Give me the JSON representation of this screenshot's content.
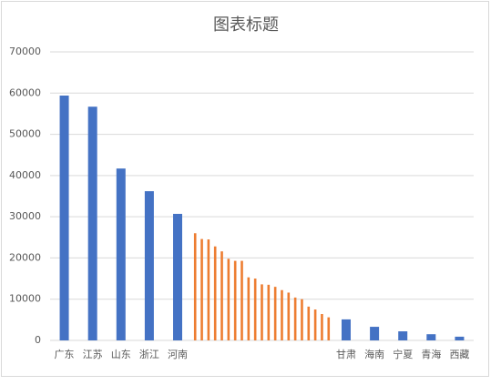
{
  "chart_data": {
    "type": "bar",
    "title": "图表标题",
    "categories": [
      "广东",
      "江苏",
      "山东",
      "浙江",
      "河南",
      null,
      null,
      null,
      null,
      null,
      null,
      null,
      null,
      null,
      null,
      null,
      null,
      null,
      null,
      null,
      null,
      null,
      null,
      null,
      null,
      null,
      "甘肃",
      "海南",
      "宁夏",
      "青海",
      "西藏"
    ],
    "values": [
      59400,
      56700,
      41700,
      36200,
      30700,
      26000,
      24600,
      24500,
      22800,
      21600,
      19800,
      19300,
      19300,
      15300,
      15000,
      13600,
      13500,
      13000,
      12200,
      11600,
      10400,
      10000,
      8200,
      7500,
      6400,
      5600,
      5100,
      3300,
      2200,
      1500,
      900
    ],
    "color": "#4472c4",
    "unlabeled_color": "#ed7d31",
    "ylim": [
      0,
      70000
    ],
    "yticks": [
      0,
      10000,
      20000,
      30000,
      40000,
      50000,
      60000,
      70000
    ],
    "grid": true
  }
}
